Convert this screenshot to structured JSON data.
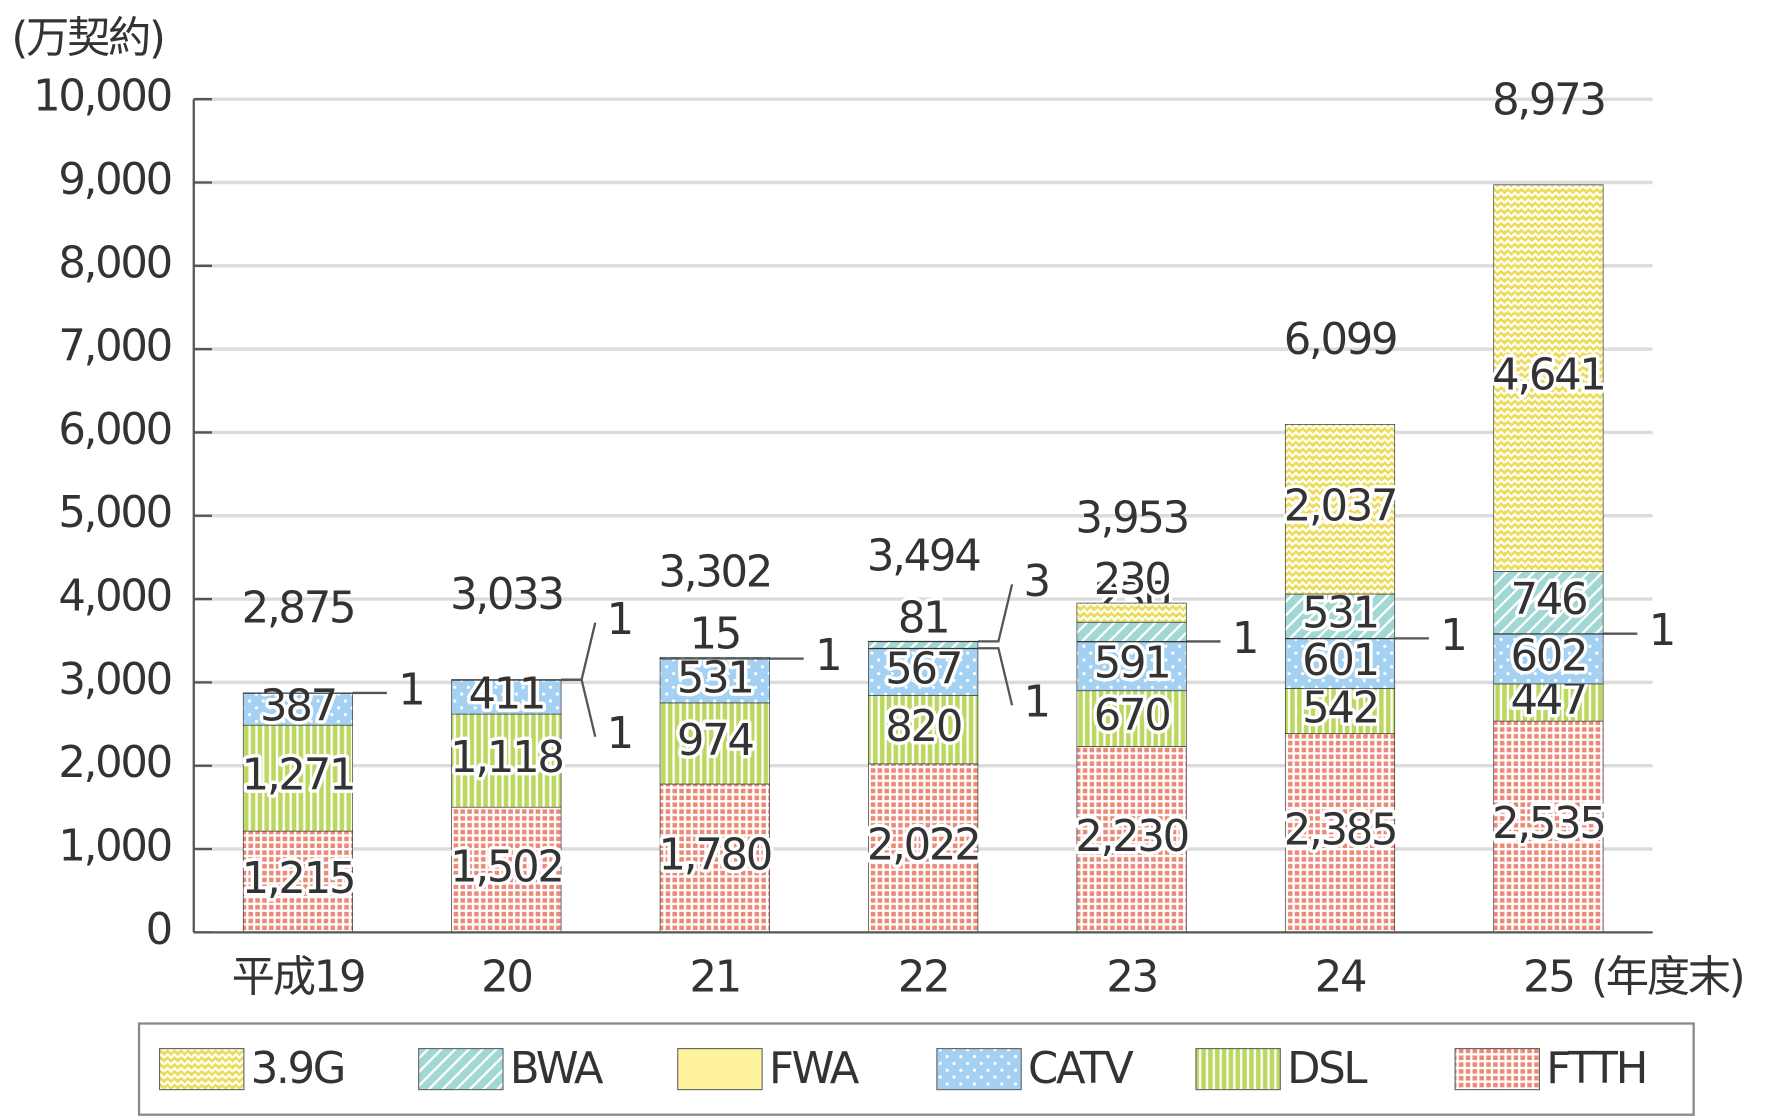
{
  "chart_data": {
    "type": "stacked-bar",
    "y_label": "(万契約)",
    "x_label": "(年度末)",
    "categories": [
      "平成19",
      "20",
      "21",
      "22",
      "23",
      "24",
      "25"
    ],
    "series": [
      {
        "name": "FTTH",
        "color": "#ec8a78",
        "pattern": "grid",
        "values": [
          1215,
          1502,
          1780,
          2022,
          2230,
          2385,
          2535
        ],
        "value_labels": [
          "1,215",
          "1,502",
          "1,780",
          "2,022",
          "2,230",
          "2,385",
          "2,535"
        ]
      },
      {
        "name": "DSL",
        "color": "#bcd860",
        "pattern": "vertical",
        "values": [
          1271,
          1118,
          974,
          820,
          670,
          542,
          447
        ],
        "value_labels": [
          "1,271",
          "1,118",
          "974",
          "820",
          "670",
          "542",
          "447"
        ]
      },
      {
        "name": "CATV",
        "color": "#a4d0f2",
        "pattern": "dots",
        "values": [
          387,
          411,
          531,
          567,
          591,
          601,
          602
        ],
        "value_labels": [
          "387",
          "411",
          "531",
          "567",
          "591",
          "601",
          "602"
        ]
      },
      {
        "name": "FWA",
        "color": "#fff49c",
        "pattern": "plain",
        "values": [
          1,
          1,
          1,
          1,
          1,
          1,
          1
        ],
        "value_labels": [
          "1",
          "1",
          "1",
          "1",
          "1",
          "1",
          "1"
        ]
      },
      {
        "name": "BWA",
        "color": "#a2d8d4",
        "pattern": "diagonal",
        "values": [
          null,
          1,
          15,
          81,
          230,
          531,
          746
        ],
        "value_labels": [
          null,
          "1",
          "15",
          "81",
          "230",
          "531",
          "746"
        ]
      },
      {
        "name": "3.9G",
        "color": "#ecdc58",
        "pattern": "zigzag",
        "values": [
          null,
          null,
          null,
          3,
          230,
          2037,
          4641
        ],
        "value_labels": [
          null,
          null,
          null,
          "3",
          "230",
          "2,037",
          "4,641"
        ]
      }
    ],
    "totals": [
      2875,
      3033,
      3302,
      3494,
      3953,
      6099,
      8973
    ],
    "totals_labels": [
      "2,875",
      "3,033",
      "3,302",
      "3,494",
      "3,953",
      "6,099",
      "8,973"
    ],
    "ylim": [
      0,
      10000
    ],
    "yticks": [
      0,
      {
        "value": 1000,
        "label": "1,000"
      },
      {
        "value": 2000,
        "label": "2,000"
      },
      {
        "value": 3000,
        "label": "3,000"
      },
      {
        "value": 4000,
        "label": "4,000"
      },
      {
        "value": 5000,
        "label": "5,000"
      },
      {
        "value": 6000,
        "label": "6,000"
      },
      {
        "value": 7000,
        "label": "7,000"
      },
      {
        "value": 8000,
        "label": "8,000"
      },
      {
        "value": 9000,
        "label": "9,000"
      },
      {
        "value": 10000,
        "label": "10,000"
      }
    ],
    "grid": true,
    "legend": "bottom"
  }
}
